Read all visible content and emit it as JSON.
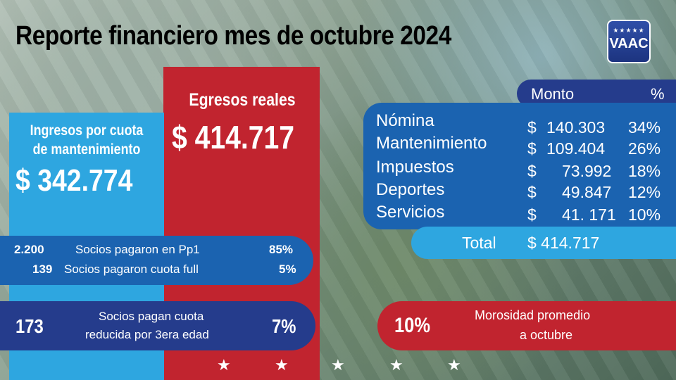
{
  "title": "Reporte financiero mes de octubre 2024",
  "logo": {
    "stars": "★★★★★",
    "text": "VAAC"
  },
  "ingresos": {
    "label_line1": "Ingresos por cuota",
    "label_line2": "de mantenimiento",
    "value": "$ 342.774"
  },
  "egresos": {
    "label": "Egresos reales",
    "value": "$ 414.717"
  },
  "socios": [
    {
      "count": "2.200",
      "text": "Socios pagaron en Pp1",
      "pct": "85%"
    },
    {
      "count": "139",
      "text": "Socios pagaron cuota full",
      "pct": "5%"
    }
  ],
  "reducida": {
    "count": "173",
    "line1": "Socios pagan cuota",
    "line2": "reducida por 3era edad",
    "pct": "7%"
  },
  "table": {
    "head_monto": "Monto",
    "head_pct": "%",
    "rows": [
      {
        "cat": "Nómina",
        "sign": "$",
        "amount": "140.303",
        "pct": "34%"
      },
      {
        "cat": "Mantenimiento",
        "sign": "$",
        "amount": "109.404",
        "pct": "26%"
      },
      {
        "cat": "Impuestos",
        "sign": "$",
        "amount": "73.992",
        "pct": "18%"
      },
      {
        "cat": "Deportes",
        "sign": "$",
        "amount": "49.847",
        "pct": "12%"
      },
      {
        "cat": "Servicios",
        "sign": "$",
        "amount": "41. 171",
        "pct": "10%"
      }
    ],
    "total_label": "Total",
    "total_value": "$ 414.717"
  },
  "morosidad": {
    "pct": "10%",
    "line1": "Morosidad promedio",
    "line2": "a octubre"
  },
  "stars_footer": "★",
  "colors": {
    "red": "#c1242f",
    "light_blue": "#2ea6e0",
    "mid_blue": "#1b63b0",
    "navy": "#253c8c"
  }
}
